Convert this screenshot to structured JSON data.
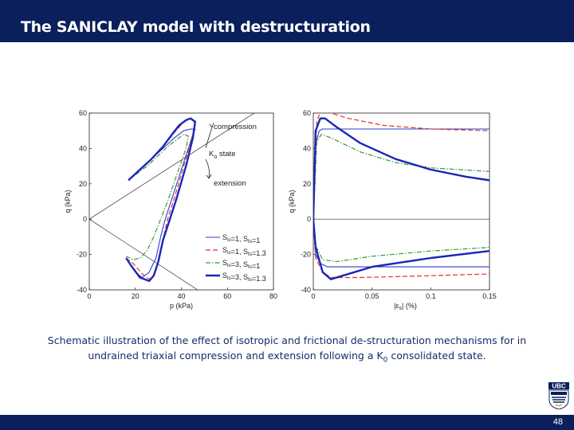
{
  "slide": {
    "title": "The SANICLAY model with destructuration",
    "caption_line1": "Schematic illustration of the effect of isotropic and frictional de-structuration mechanisms for in",
    "caption_line2_pre": "undrained triaxial compression and extension following a K",
    "caption_line2_sub": "0",
    "caption_line2_post": " consolidated state.",
    "page_number": "48",
    "logo_text": "UBC"
  },
  "colors": {
    "bar": "#0a1f5c",
    "caption": "#1a2a6c",
    "series_blue_thin": "#2a3fc8",
    "series_red": "#e03030",
    "series_green": "#3a9a3a",
    "series_blue_thick": "#1a26b8"
  },
  "chart_data": [
    {
      "type": "line",
      "xlabel": "p (kPa)",
      "ylabel": "q (kPa)",
      "xlim": [
        0,
        80
      ],
      "ylim": [
        -40,
        60
      ],
      "x_ticks": [
        "0",
        "20",
        "40",
        "60",
        "80"
      ],
      "y_ticks": [
        "60",
        "40",
        "20",
        "0",
        "-20",
        "-40"
      ],
      "annotations": {
        "compression": "compression",
        "k0_main": "K",
        "k0_sub": "o",
        "k0_post": " state",
        "extension": "extension"
      },
      "legend": {
        "placement": "bottom-right",
        "entries": [
          {
            "style": "solid-thin",
            "color": "#2a3fc8",
            "label": "S_io=1, S_fo=1"
          },
          {
            "style": "dashed",
            "color": "#e03030",
            "label": "S_io=1, S_fo=1.3"
          },
          {
            "style": "dashdot",
            "color": "#3a9a3a",
            "label": "S_io=3, S_fo=1"
          },
          {
            "style": "solid-thick",
            "color": "#1a26b8",
            "label": "S_io=3, S_fo=1.3"
          }
        ]
      },
      "series": [
        {
          "style": "solid-thin",
          "color": "#2a3fc8",
          "points": [
            [
              17,
              22
            ],
            [
              22,
              28
            ],
            [
              27,
              34
            ],
            [
              32,
              40
            ],
            [
              37,
              46
            ],
            [
              41,
              50
            ],
            [
              44,
              51
            ],
            [
              46,
              51
            ],
            [
              44,
              44
            ],
            [
              40,
              28
            ],
            [
              36,
              12
            ],
            [
              33,
              0
            ],
            [
              31,
              -10
            ],
            [
              29,
              -22
            ],
            [
              26,
              -30
            ],
            [
              23,
              -33
            ],
            [
              20,
              -30
            ],
            [
              17,
              -24
            ]
          ]
        },
        {
          "style": "dashed",
          "color": "#e03030",
          "points": [
            [
              17,
              22
            ],
            [
              22,
              28
            ],
            [
              27,
              34
            ],
            [
              32,
              41
            ],
            [
              37,
              49
            ],
            [
              41,
              55
            ],
            [
              44,
              57
            ],
            [
              46,
              56
            ],
            [
              45,
              48
            ],
            [
              41,
              30
            ],
            [
              37,
              12
            ],
            [
              34,
              0
            ],
            [
              32,
              -12
            ],
            [
              30,
              -24
            ],
            [
              28,
              -32
            ],
            [
              26,
              -34
            ],
            [
              23,
              -31
            ],
            [
              19,
              -25
            ],
            [
              17,
              -23
            ]
          ]
        },
        {
          "style": "dashdot",
          "color": "#3a9a3a",
          "points": [
            [
              17,
              22
            ],
            [
              21,
              26
            ],
            [
              26,
              31
            ],
            [
              30,
              36
            ],
            [
              34,
              41
            ],
            [
              38,
              45
            ],
            [
              41,
              48
            ],
            [
              43,
              47
            ],
            [
              42,
              40
            ],
            [
              38,
              25
            ],
            [
              34,
              10
            ],
            [
              31,
              0
            ],
            [
              28,
              -10
            ],
            [
              25,
              -18
            ],
            [
              22,
              -22
            ],
            [
              19,
              -23
            ],
            [
              16,
              -21
            ]
          ]
        },
        {
          "style": "solid-thick",
          "color": "#1a26b8",
          "points": [
            [
              17,
              22
            ],
            [
              22,
              28
            ],
            [
              27,
              34
            ],
            [
              32,
              41
            ],
            [
              36,
              48
            ],
            [
              39,
              53
            ],
            [
              42,
              56
            ],
            [
              44,
              57
            ],
            [
              46,
              55
            ],
            [
              45,
              46
            ],
            [
              42,
              30
            ],
            [
              38,
              12
            ],
            [
              35,
              0
            ],
            [
              32,
              -12
            ],
            [
              30,
              -24
            ],
            [
              28,
              -32
            ],
            [
              26,
              -35
            ],
            [
              22,
              -33
            ],
            [
              18,
              -26
            ],
            [
              16,
              -22
            ]
          ]
        }
      ],
      "reference_lines": [
        {
          "points": [
            [
              0,
              0
            ],
            [
              80,
              67
            ]
          ]
        },
        {
          "points": [
            [
              0,
              0
            ],
            [
              80,
              -68
            ]
          ]
        }
      ]
    },
    {
      "type": "line",
      "xlabel": "|ε_s| (%)",
      "ylabel": "q (kPa)",
      "xlim": [
        0,
        0.15
      ],
      "ylim": [
        -40,
        60
      ],
      "x_ticks": [
        "0",
        "0.05",
        "0.1",
        "0.15"
      ],
      "y_ticks": [
        "60",
        "40",
        "20",
        "0",
        "-20",
        "-40"
      ],
      "series": [
        {
          "style": "solid-thin",
          "color": "#2a3fc8",
          "points": [
            [
              0,
              0
            ],
            [
              0.002,
              42
            ],
            [
              0.005,
              50
            ],
            [
              0.008,
              51
            ],
            [
              0.02,
              51
            ],
            [
              0.06,
              51
            ],
            [
              0.1,
              51
            ],
            [
              0.15,
              51
            ]
          ]
        },
        {
          "style": "dashed",
          "color": "#e03030",
          "points": [
            [
              0,
              0
            ],
            [
              0.003,
              55
            ],
            [
              0.006,
              61
            ],
            [
              0.01,
              61
            ],
            [
              0.03,
              57
            ],
            [
              0.06,
              53
            ],
            [
              0.1,
              51
            ],
            [
              0.15,
              50
            ]
          ]
        },
        {
          "style": "dashdot",
          "color": "#3a9a3a",
          "points": [
            [
              0,
              0
            ],
            [
              0.003,
              44
            ],
            [
              0.007,
              48
            ],
            [
              0.015,
              46
            ],
            [
              0.04,
              38
            ],
            [
              0.07,
              32
            ],
            [
              0.1,
              29
            ],
            [
              0.15,
              27
            ]
          ]
        },
        {
          "style": "solid-thick",
          "color": "#1a26b8",
          "points": [
            [
              0,
              0
            ],
            [
              0.002,
              50
            ],
            [
              0.006,
              57
            ],
            [
              0.01,
              57
            ],
            [
              0.02,
              52
            ],
            [
              0.04,
              43
            ],
            [
              0.07,
              34
            ],
            [
              0.1,
              28
            ],
            [
              0.13,
              24
            ],
            [
              0.15,
              22
            ]
          ]
        },
        {
          "style": "solid-thin",
          "color": "#2a3fc8",
          "points": [
            [
              0,
              0
            ],
            [
              0.002,
              -20
            ],
            [
              0.006,
              -25
            ],
            [
              0.012,
              -27
            ],
            [
              0.03,
              -27
            ],
            [
              0.08,
              -27
            ],
            [
              0.15,
              -27
            ]
          ]
        },
        {
          "style": "dashed",
          "color": "#e03030",
          "points": [
            [
              0,
              0
            ],
            [
              0.002,
              -22
            ],
            [
              0.008,
              -30
            ],
            [
              0.015,
              -33
            ],
            [
              0.04,
              -33
            ],
            [
              0.1,
              -32
            ],
            [
              0.15,
              -31
            ]
          ]
        },
        {
          "style": "dashdot",
          "color": "#3a9a3a",
          "points": [
            [
              0,
              0
            ],
            [
              0.002,
              -15
            ],
            [
              0.008,
              -23
            ],
            [
              0.02,
              -24
            ],
            [
              0.05,
              -21
            ],
            [
              0.1,
              -18
            ],
            [
              0.15,
              -16
            ]
          ]
        },
        {
          "style": "solid-thick",
          "color": "#1a26b8",
          "points": [
            [
              0,
              0
            ],
            [
              0.002,
              -16
            ],
            [
              0.008,
              -30
            ],
            [
              0.015,
              -34
            ],
            [
              0.025,
              -32
            ],
            [
              0.05,
              -27
            ],
            [
              0.1,
              -22
            ],
            [
              0.15,
              -18
            ]
          ]
        }
      ],
      "reference_lines": [
        {
          "points": [
            [
              0,
              0
            ],
            [
              0.15,
              0
            ]
          ]
        }
      ]
    }
  ]
}
